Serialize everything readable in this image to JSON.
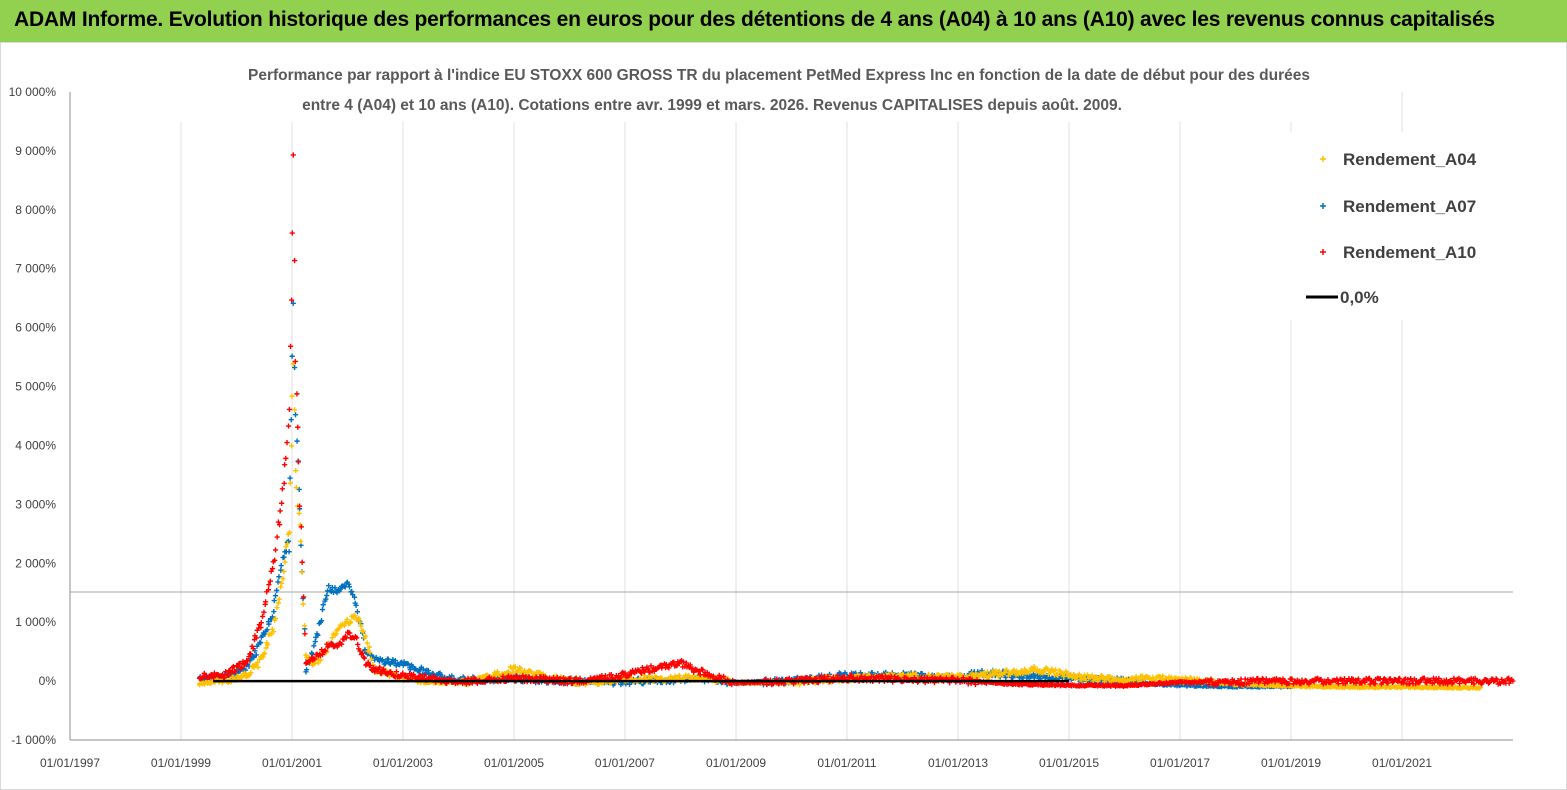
{
  "banner": {
    "title": "ADAM Informe. Evolution historique des performances en euros pour des détentions de 4 ans (A04) à 10 ans (A10) avec les revenus connus capitalisés"
  },
  "chart_data": {
    "type": "scatter",
    "title_lines": [
      "Performance par rapport à l'indice EU STOXX 600 GROSS TR  du placement PetMed Express Inc en fonction de la date de début pour des durées",
      "entre 4 (A04) et 10 ans (A10). Cotations entre avr. 1999 et mars. 2026. Revenus CAPITALISES depuis août. 2009."
    ],
    "x_range": [
      "1997-01-01",
      "2022-12-31"
    ],
    "x_ticks": [
      "01/01/1997",
      "01/01/1999",
      "01/01/2001",
      "01/01/2003",
      "01/01/2005",
      "01/01/2007",
      "01/01/2009",
      "01/01/2011",
      "01/01/2013",
      "01/01/2015",
      "01/01/2017",
      "01/01/2019",
      "01/01/2021"
    ],
    "y_range": [
      -1000,
      10000
    ],
    "y_ticks": [
      "-1 000%",
      "0%",
      "1 000%",
      "2 000%",
      "3 000%",
      "4 000%",
      "5 000%",
      "6 000%",
      "7 000%",
      "8 000%",
      "9 000%",
      "10 000%"
    ],
    "grid": "vertical",
    "legend_position": "top-right",
    "series": [
      {
        "name": "Rendement_A04",
        "color": "#ffc000",
        "marker": "plus",
        "points": [
          [
            "1999-05-01",
            -50
          ],
          [
            "1999-10-01",
            0
          ],
          [
            "2000-03-01",
            100
          ],
          [
            "2000-06-01",
            300
          ],
          [
            "2000-09-01",
            900
          ],
          [
            "2000-11-01",
            1800
          ],
          [
            "2000-12-15",
            2600
          ],
          [
            "2001-01-10",
            5500
          ],
          [
            "2001-01-25",
            3500
          ],
          [
            "2001-03-01",
            2400
          ],
          [
            "2001-04-01",
            400
          ],
          [
            "2001-06-01",
            300
          ],
          [
            "2001-09-01",
            600
          ],
          [
            "2001-11-01",
            900
          ],
          [
            "2002-01-01",
            1000
          ],
          [
            "2002-03-01",
            1100
          ],
          [
            "2002-05-01",
            700
          ],
          [
            "2002-07-01",
            200
          ],
          [
            "2003-01-01",
            50
          ],
          [
            "2003-06-01",
            -20
          ],
          [
            "2004-01-01",
            -20
          ],
          [
            "2004-06-01",
            20
          ],
          [
            "2005-01-01",
            200
          ],
          [
            "2005-06-01",
            100
          ],
          [
            "2006-01-01",
            0
          ],
          [
            "2006-06-01",
            -20
          ],
          [
            "2007-01-01",
            40
          ],
          [
            "2008-01-01",
            50
          ],
          [
            "2008-07-01",
            50
          ],
          [
            "2009-01-01",
            -30
          ],
          [
            "2010-01-01",
            -20
          ],
          [
            "2011-01-01",
            50
          ],
          [
            "2012-01-01",
            80
          ],
          [
            "2013-01-01",
            60
          ],
          [
            "2013-06-01",
            100
          ],
          [
            "2014-01-01",
            150
          ],
          [
            "2014-06-01",
            200
          ],
          [
            "2015-01-01",
            100
          ],
          [
            "2015-06-01",
            50
          ],
          [
            "2016-01-01",
            20
          ],
          [
            "2016-06-01",
            50
          ],
          [
            "2017-01-01",
            20
          ],
          [
            "2017-06-01",
            0
          ],
          [
            "2018-01-01",
            -50
          ],
          [
            "2019-01-01",
            -80
          ],
          [
            "2020-01-01",
            -100
          ],
          [
            "2021-01-01",
            -100
          ],
          [
            "2022-01-01",
            -110
          ],
          [
            "2022-06-01",
            -110
          ]
        ]
      },
      {
        "name": "Rendement_A07",
        "color": "#0070c0",
        "marker": "plus",
        "points": [
          [
            "1999-05-01",
            30
          ],
          [
            "1999-10-01",
            50
          ],
          [
            "2000-03-01",
            200
          ],
          [
            "2000-06-01",
            600
          ],
          [
            "2000-09-01",
            1200
          ],
          [
            "2000-11-01",
            2100
          ],
          [
            "2000-12-15",
            2400
          ],
          [
            "2001-01-10",
            6300
          ],
          [
            "2001-01-25",
            4500
          ],
          [
            "2001-03-01",
            2400
          ],
          [
            "2001-04-01",
            200
          ],
          [
            "2001-06-01",
            600
          ],
          [
            "2001-09-01",
            1600
          ],
          [
            "2001-11-01",
            1500
          ],
          [
            "2002-01-01",
            1700
          ],
          [
            "2002-03-01",
            1300
          ],
          [
            "2002-05-01",
            500
          ],
          [
            "2002-07-01",
            350
          ],
          [
            "2003-01-01",
            300
          ],
          [
            "2003-06-01",
            150
          ],
          [
            "2004-01-01",
            20
          ],
          [
            "2004-06-01",
            30
          ],
          [
            "2005-01-01",
            50
          ],
          [
            "2005-06-01",
            20
          ],
          [
            "2006-01-01",
            0
          ],
          [
            "2006-06-01",
            -20
          ],
          [
            "2007-01-01",
            -10
          ],
          [
            "2008-01-01",
            20
          ],
          [
            "2008-07-01",
            30
          ],
          [
            "2009-01-01",
            -30
          ],
          [
            "2010-01-01",
            0
          ],
          [
            "2011-01-01",
            100
          ],
          [
            "2012-01-01",
            100
          ],
          [
            "2013-01-01",
            50
          ],
          [
            "2013-06-01",
            150
          ],
          [
            "2014-01-01",
            100
          ],
          [
            "2014-06-01",
            80
          ],
          [
            "2015-01-01",
            50
          ],
          [
            "2015-06-01",
            20
          ],
          [
            "2016-01-01",
            0
          ],
          [
            "2016-06-01",
            -40
          ],
          [
            "2017-01-01",
            -70
          ],
          [
            "2017-06-01",
            -80
          ],
          [
            "2018-01-01",
            -90
          ],
          [
            "2019-01-01",
            -90
          ]
        ]
      },
      {
        "name": "Rendement_A10",
        "color": "#ff0000",
        "marker": "plus",
        "points": [
          [
            "1999-05-01",
            80
          ],
          [
            "1999-10-01",
            100
          ],
          [
            "2000-03-01",
            300
          ],
          [
            "2000-06-01",
            900
          ],
          [
            "2000-09-01",
            2000
          ],
          [
            "2000-11-01",
            3200
          ],
          [
            "2000-12-15",
            4500
          ],
          [
            "2001-01-10",
            8800
          ],
          [
            "2001-01-25",
            5500
          ],
          [
            "2001-03-01",
            2500
          ],
          [
            "2001-04-01",
            300
          ],
          [
            "2001-06-01",
            400
          ],
          [
            "2001-09-01",
            600
          ],
          [
            "2001-11-01",
            600
          ],
          [
            "2002-01-01",
            800
          ],
          [
            "2002-03-01",
            700
          ],
          [
            "2002-05-01",
            300
          ],
          [
            "2002-07-01",
            200
          ],
          [
            "2003-01-01",
            100
          ],
          [
            "2003-06-01",
            50
          ],
          [
            "2004-01-01",
            -20
          ],
          [
            "2004-06-01",
            20
          ],
          [
            "2005-01-01",
            50
          ],
          [
            "2005-06-01",
            30
          ],
          [
            "2006-01-01",
            0
          ],
          [
            "2006-06-01",
            30
          ],
          [
            "2007-01-01",
            100
          ],
          [
            "2007-06-01",
            200
          ],
          [
            "2008-01-01",
            300
          ],
          [
            "2008-07-01",
            100
          ],
          [
            "2009-01-01",
            -30
          ],
          [
            "2010-01-01",
            0
          ],
          [
            "2011-01-01",
            50
          ],
          [
            "2012-01-01",
            30
          ],
          [
            "2013-01-01",
            20
          ],
          [
            "2013-06-01",
            -20
          ],
          [
            "2014-01-01",
            -50
          ],
          [
            "2015-01-01",
            -70
          ],
          [
            "2016-01-01",
            -80
          ],
          [
            "2016-06-01",
            -50
          ],
          [
            "2017-01-01",
            -20
          ],
          [
            "2018-01-01",
            -10
          ],
          [
            "2019-01-01",
            0
          ],
          [
            "2020-01-01",
            0
          ],
          [
            "2021-01-01",
            0
          ],
          [
            "2022-01-01",
            0
          ],
          [
            "2022-12-31",
            0
          ]
        ]
      },
      {
        "name": "0,0%",
        "color": "#000000",
        "marker": "line",
        "points": [
          [
            "1999-08-01",
            0
          ],
          [
            "2015-01-01",
            0
          ]
        ]
      }
    ]
  }
}
